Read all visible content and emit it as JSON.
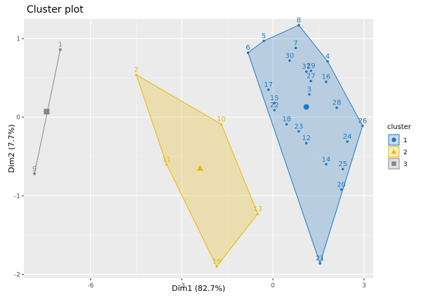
{
  "chart_data": {
    "type": "scatter",
    "title": "Cluster plot",
    "xlabel": "Dim1 (82.7%)",
    "ylabel": "Dim2 (7.7%)",
    "xlim": [
      -8.2,
      3.3
    ],
    "ylim": [
      -2.05,
      1.25
    ],
    "x_ticks": [
      -6,
      -3,
      0,
      3
    ],
    "y_ticks": [
      -2,
      -1,
      0,
      1
    ],
    "grid": true,
    "legend_title": "cluster",
    "legend_position": "right",
    "clusters": [
      {
        "name": "1",
        "color": "#1f78c1",
        "shape": "circle",
        "center": [
          1.1,
          0.13
        ],
        "points": [
          {
            "label": "3",
            "x": 1.2,
            "y": 0.29
          },
          {
            "label": "4",
            "x": 1.8,
            "y": 0.71
          },
          {
            "label": "5",
            "x": -0.3,
            "y": 0.97
          },
          {
            "label": "6",
            "x": -0.82,
            "y": 0.82
          },
          {
            "label": "7",
            "x": 0.75,
            "y": 0.88
          },
          {
            "label": "8",
            "x": 0.85,
            "y": 1.17
          },
          {
            "label": "12",
            "x": 1.1,
            "y": -0.33
          },
          {
            "label": "14",
            "x": 1.75,
            "y": -0.6
          },
          {
            "label": "15",
            "x": 0.05,
            "y": 0.18
          },
          {
            "label": "16",
            "x": 1.75,
            "y": 0.45
          },
          {
            "label": "17",
            "x": -0.15,
            "y": 0.35
          },
          {
            "label": "18",
            "x": 0.45,
            "y": -0.09
          },
          {
            "label": "20",
            "x": 2.25,
            "y": -0.92
          },
          {
            "label": "21",
            "x": 1.55,
            "y": -1.86
          },
          {
            "label": "22",
            "x": 0.05,
            "y": 0.09
          },
          {
            "label": "23",
            "x": 0.85,
            "y": -0.18
          },
          {
            "label": "24",
            "x": 2.45,
            "y": -0.31
          },
          {
            "label": "25",
            "x": 2.3,
            "y": -0.66
          },
          {
            "label": "26",
            "x": 2.95,
            "y": -0.11
          },
          {
            "label": "27",
            "x": 1.25,
            "y": 0.46
          },
          {
            "label": "28",
            "x": 2.1,
            "y": 0.12
          },
          {
            "label": "29",
            "x": 1.25,
            "y": 0.59
          },
          {
            "label": "30",
            "x": 0.55,
            "y": 0.72
          },
          {
            "label": "31",
            "x": 1.1,
            "y": 0.58
          }
        ],
        "hull": [
          "8",
          "4",
          "26",
          "21",
          "6",
          "5"
        ]
      },
      {
        "name": "2",
        "color": "#e7b800",
        "shape": "triangle",
        "center": [
          -2.4,
          -0.65
        ],
        "points": [
          {
            "label": "2",
            "x": -4.5,
            "y": 0.54
          },
          {
            "label": "10",
            "x": -1.7,
            "y": -0.09
          },
          {
            "label": "11",
            "x": -3.5,
            "y": -0.6
          },
          {
            "label": "13",
            "x": -0.5,
            "y": -1.23
          },
          {
            "label": "19",
            "x": -1.85,
            "y": -1.9
          }
        ],
        "hull": [
          "2",
          "10",
          "13",
          "19",
          "11"
        ]
      },
      {
        "name": "3",
        "color": "#868686",
        "shape": "square",
        "center": [
          -7.45,
          0.07
        ],
        "points": [
          {
            "label": "1",
            "x": -7.0,
            "y": 0.86
          },
          {
            "label": "9",
            "x": -7.85,
            "y": -0.72
          }
        ],
        "hull": [
          "1",
          "9"
        ]
      }
    ]
  }
}
